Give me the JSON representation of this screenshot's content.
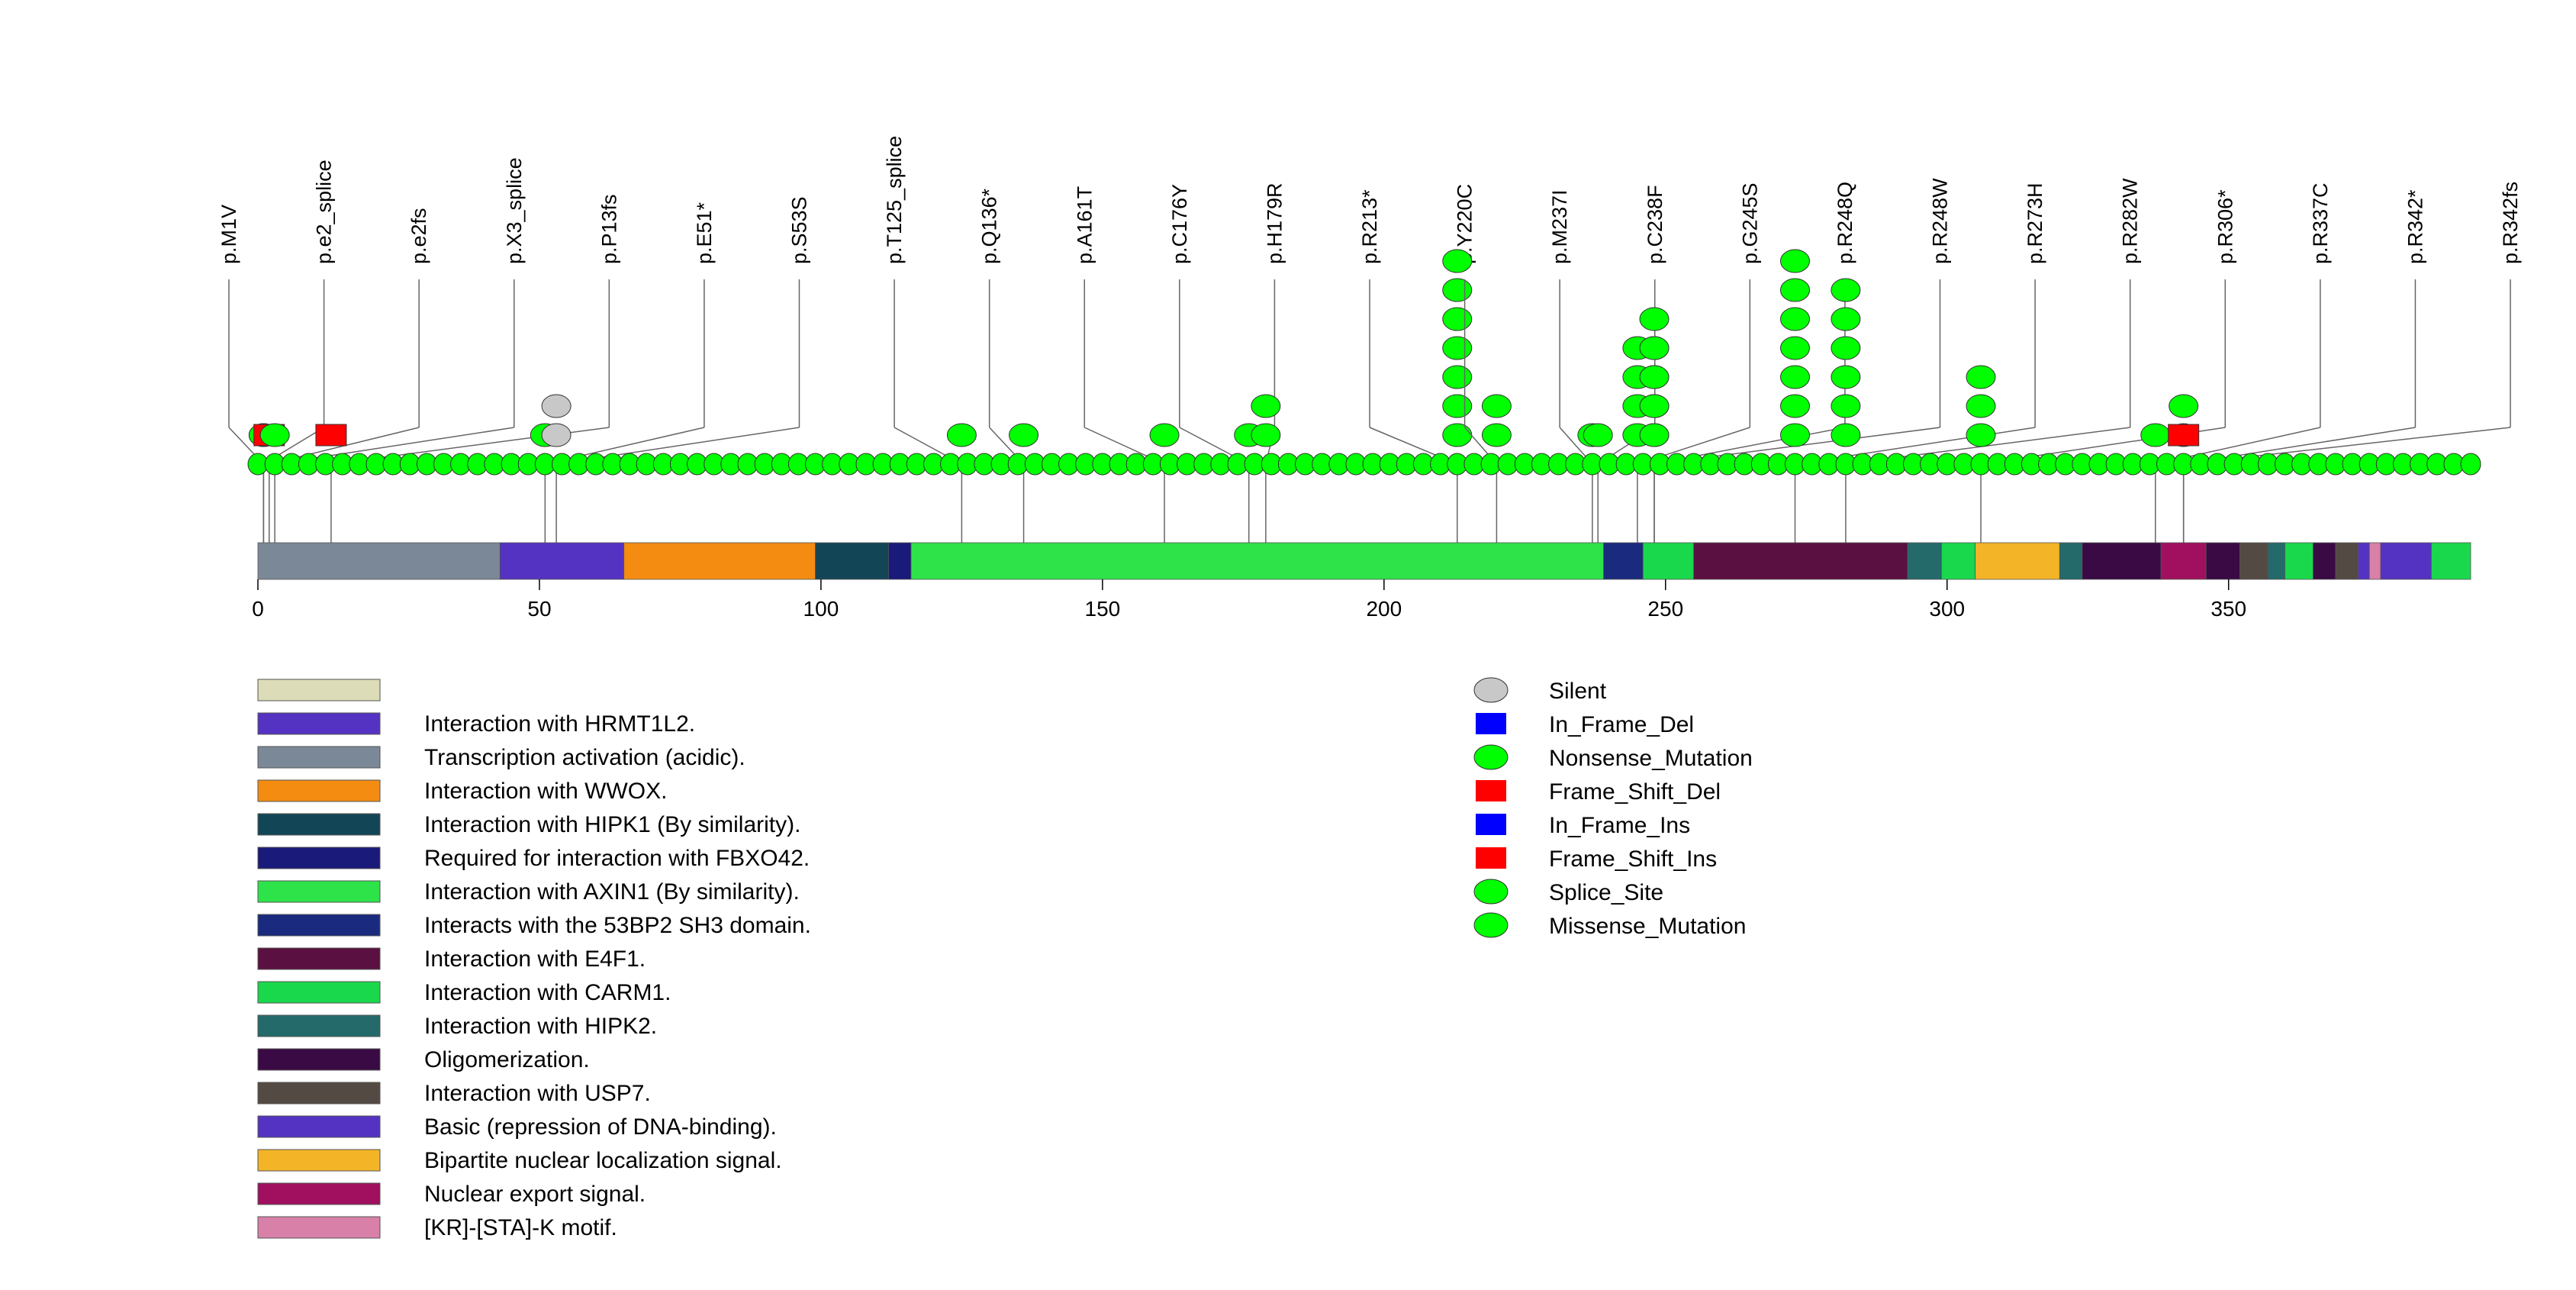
{
  "chart_data": {
    "type": "lollipop",
    "title": "",
    "xlabel": "",
    "ylabel": "",
    "xlim": [
      0,
      393
    ],
    "ticks": [
      0,
      50,
      100,
      150,
      200,
      250,
      300,
      350
    ],
    "tick_labels": [
      "0",
      "50",
      "100",
      "150",
      "200",
      "250",
      "300",
      "350"
    ],
    "domains": [
      {
        "name": "Transcription activation (acidic).",
        "start": 0,
        "end": 43,
        "color": "#7b8897"
      },
      {
        "name": "Interaction with HRMT1L2.",
        "start": 43,
        "end": 65,
        "color": "#5533c2"
      },
      {
        "name": "Interaction with WWOX.",
        "start": 65,
        "end": 99,
        "color": "#f48c12"
      },
      {
        "name": "Interaction with HIPK1 (By similarity).",
        "start": 99,
        "end": 112,
        "color": "#124656"
      },
      {
        "name": "Required for interaction with FBXO42.",
        "start": 112,
        "end": 116,
        "color": "#1a1a7a"
      },
      {
        "name": "Interaction with AXIN1 (By similarity).",
        "start": 116,
        "end": 239,
        "color": "#2ee24a"
      },
      {
        "name": "Interacts with the 53BP2 SH3 domain.",
        "start": 239,
        "end": 246,
        "color": "#1a2a7e"
      },
      {
        "name": "Interaction with CARM1.",
        "start": 246,
        "end": 255,
        "color": "#1ad84c"
      },
      {
        "name": "Interaction with E4F1.",
        "start": 255,
        "end": 293,
        "color": "#5a1040"
      },
      {
        "name": "Interaction with HIPK2.",
        "start": 293,
        "end": 299,
        "color": "#246a6a"
      },
      {
        "name": "Interaction with CARM1.",
        "start": 299,
        "end": 305,
        "color": "#1ad84c"
      },
      {
        "name": "Bipartite nuclear localization signal.",
        "start": 305,
        "end": 320,
        "color": "#f4b428"
      },
      {
        "name": "Interaction with HIPK2.",
        "start": 320,
        "end": 324,
        "color": "#246a6a"
      },
      {
        "name": "Oligomerization.",
        "start": 324,
        "end": 338,
        "color": "#3a0a44"
      },
      {
        "name": "Nuclear export signal.",
        "start": 338,
        "end": 346,
        "color": "#a0105e"
      },
      {
        "name": "Oligomerization.",
        "start": 346,
        "end": 352,
        "color": "#3a0a44"
      },
      {
        "name": "Interaction with USP7.",
        "start": 352,
        "end": 357,
        "color": "#544a44"
      },
      {
        "name": "Interaction with HIPK2.",
        "start": 357,
        "end": 360,
        "color": "#246a6a"
      },
      {
        "name": "Interaction with CARM1.",
        "start": 360,
        "end": 365,
        "color": "#1ad84c"
      },
      {
        "name": "Oligomerization.",
        "start": 365,
        "end": 369,
        "color": "#3a0a44"
      },
      {
        "name": "Interaction with USP7.",
        "start": 369,
        "end": 373,
        "color": "#544a44"
      },
      {
        "name": "Basic (repression of DNA-binding).",
        "start": 373,
        "end": 375,
        "color": "#5533c2"
      },
      {
        "name": "[KR]-[STA]-K motif.",
        "start": 375,
        "end": 377,
        "color": "#d880a8"
      },
      {
        "name": "Basic (repression of DNA-binding).",
        "start": 377,
        "end": 386,
        "color": "#5533c2"
      },
      {
        "name": "Interaction with CARM1.",
        "start": 386,
        "end": 393,
        "color": "#1ad84c"
      }
    ],
    "mutations": [
      {
        "label": "p.M1V",
        "pos": 1,
        "count": 1,
        "type": "Missense_Mutation"
      },
      {
        "label": "p.e2_splice",
        "pos": 1,
        "count": 1,
        "type": "Splice_Site"
      },
      {
        "label": "p.e2fs",
        "pos": 2,
        "count": 1,
        "type": "Frame_Shift_Del"
      },
      {
        "label": "p.X3_splice",
        "pos": 3,
        "count": 1,
        "type": "Splice_Site"
      },
      {
        "label": "p.P13fs",
        "pos": 13,
        "count": 1,
        "type": "Frame_Shift_Ins"
      },
      {
        "label": "p.E51*",
        "pos": 51,
        "count": 1,
        "type": "Nonsense_Mutation"
      },
      {
        "label": "p.S53S",
        "pos": 53,
        "count": 2,
        "type": "Silent"
      },
      {
        "label": "p.T125_splice",
        "pos": 125,
        "count": 1,
        "type": "Splice_Site"
      },
      {
        "label": "p.Q136*",
        "pos": 136,
        "count": 1,
        "type": "Nonsense_Mutation"
      },
      {
        "label": "p.A161T",
        "pos": 161,
        "count": 1,
        "type": "Missense_Mutation"
      },
      {
        "label": "p.C176Y",
        "pos": 176,
        "count": 1,
        "type": "Missense_Mutation"
      },
      {
        "label": "p.H179R",
        "pos": 179,
        "count": 2,
        "type": "Missense_Mutation"
      },
      {
        "label": "p.R213*",
        "pos": 213,
        "count": 7,
        "type": "Nonsense_Mutation"
      },
      {
        "label": "p.Y220C",
        "pos": 220,
        "count": 2,
        "type": "Missense_Mutation"
      },
      {
        "label": "p.C238F",
        "pos": 238,
        "count": 1,
        "type": "Missense_Mutation"
      },
      {
        "label": "p.M237I",
        "pos": 237,
        "count": 1,
        "type": "Missense_Mutation"
      },
      {
        "label": "p.G245S",
        "pos": 245,
        "count": 4,
        "type": "Missense_Mutation"
      },
      {
        "label": "p.R248Q",
        "pos": 248,
        "count": 5,
        "type": "Missense_Mutation"
      },
      {
        "label": "p.R248W",
        "pos": 248,
        "count": 4,
        "type": "Missense_Mutation"
      },
      {
        "label": "p.R273H",
        "pos": 273,
        "count": 7,
        "type": "Missense_Mutation"
      },
      {
        "label": "p.R282W",
        "pos": 282,
        "count": 6,
        "type": "Missense_Mutation"
      },
      {
        "label": "p.R306*",
        "pos": 306,
        "count": 3,
        "type": "Nonsense_Mutation"
      },
      {
        "label": "p.R342*",
        "pos": 342,
        "count": 2,
        "type": "Nonsense_Mutation"
      },
      {
        "label": "p.R337C",
        "pos": 337,
        "count": 1,
        "type": "Missense_Mutation"
      },
      {
        "label": "p.R342fs",
        "pos": 342,
        "count": 1,
        "type": "Frame_Shift_Del"
      }
    ],
    "legend_domains": [
      {
        "name": "",
        "color": "#dcdcb8"
      },
      {
        "name": "Interaction with HRMT1L2.",
        "color": "#5533c2"
      },
      {
        "name": "Transcription activation (acidic).",
        "color": "#7b8897"
      },
      {
        "name": "Interaction with WWOX.",
        "color": "#f48c12"
      },
      {
        "name": "Interaction with HIPK1 (By similarity).",
        "color": "#124656"
      },
      {
        "name": "Required for interaction with FBXO42.",
        "color": "#1a1a7a"
      },
      {
        "name": "Interaction with AXIN1 (By similarity).",
        "color": "#2ee24a"
      },
      {
        "name": "Interacts with the 53BP2 SH3 domain.",
        "color": "#1a2a7e"
      },
      {
        "name": "Interaction with E4F1.",
        "color": "#5a1040"
      },
      {
        "name": "Interaction with CARM1.",
        "color": "#1ad84c"
      },
      {
        "name": "Interaction with HIPK2.",
        "color": "#246a6a"
      },
      {
        "name": "Oligomerization.",
        "color": "#3a0a44"
      },
      {
        "name": "Interaction with USP7.",
        "color": "#544a44"
      },
      {
        "name": "Basic (repression of DNA-binding).",
        "color": "#5533c2"
      },
      {
        "name": "Bipartite nuclear localization signal.",
        "color": "#f4b428"
      },
      {
        "name": "Nuclear export signal.",
        "color": "#a0105e"
      },
      {
        "name": "[KR]-[STA]-K motif.",
        "color": "#d880a8"
      }
    ],
    "legend_mutations": [
      {
        "name": "Silent",
        "shape": "ellipse",
        "color": "#c8c8c8"
      },
      {
        "name": "In_Frame_Del",
        "shape": "rect",
        "color": "#0000ff"
      },
      {
        "name": "Nonsense_Mutation",
        "shape": "ellipse",
        "color": "#00ff00"
      },
      {
        "name": "Frame_Shift_Del",
        "shape": "rect",
        "color": "#ff0000"
      },
      {
        "name": "In_Frame_Ins",
        "shape": "rect",
        "color": "#0000ff"
      },
      {
        "name": "Frame_Shift_Ins",
        "shape": "rect",
        "color": "#ff0000"
      },
      {
        "name": "Splice_Site",
        "shape": "ellipse",
        "color": "#00ff00"
      },
      {
        "name": "Missense_Mutation",
        "shape": "ellipse",
        "color": "#00ff00"
      }
    ],
    "type_colors": {
      "Silent": "#c8c8c8",
      "In_Frame_Del": "#0000ff",
      "Nonsense_Mutation": "#00ff00",
      "Frame_Shift_Del": "#ff0000",
      "In_Frame_Ins": "#0000ff",
      "Frame_Shift_Ins": "#ff0000",
      "Splice_Site": "#00ff00",
      "Missense_Mutation": "#00ff00"
    }
  }
}
